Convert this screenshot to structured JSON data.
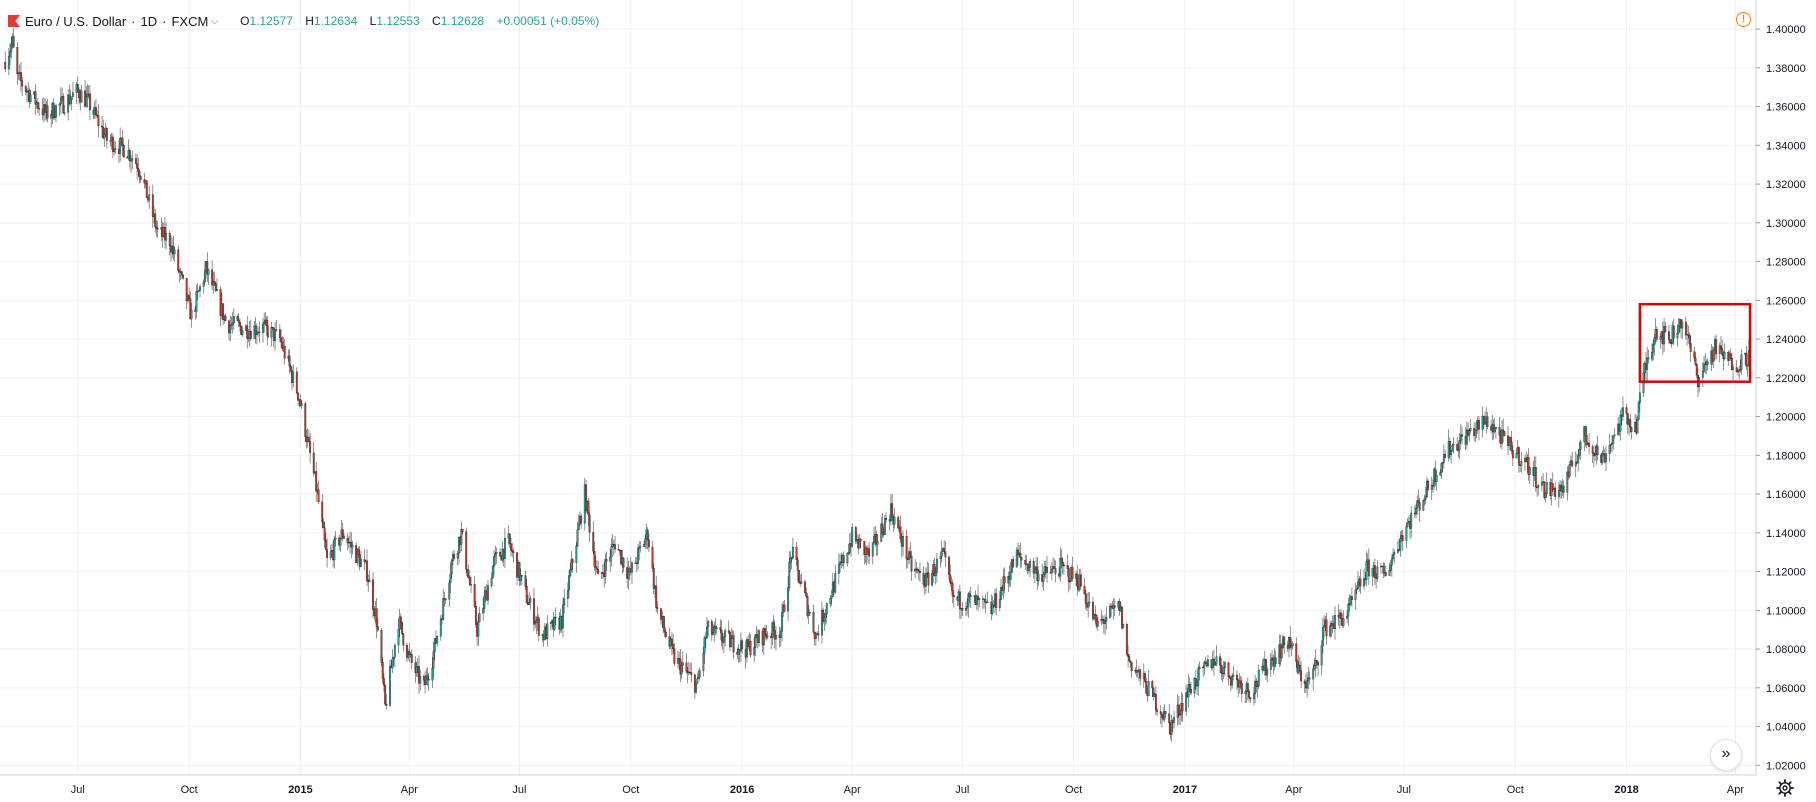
{
  "header": {
    "symbol": "Euro / U.S. Dollar",
    "sep1": "·",
    "interval": "1D",
    "sep2": "·",
    "exchange": "FXCM",
    "ohlc": {
      "o_label": "O",
      "o": "1.12577",
      "h_label": "H",
      "h": "1.12634",
      "l_label": "L",
      "l": "1.12553",
      "c_label": "C",
      "c": "1.12628",
      "change": "+0.00051 (+0.05%)"
    }
  },
  "icons": {
    "flag": "red-flag-icon",
    "dropdown": "chevron-down-icon",
    "warning": "exclamation-circle-icon",
    "scroll": "double-chevron-right-icon",
    "settings": "gear-icon"
  },
  "colors": {
    "up": "#26a69a",
    "down": "#c0392b",
    "grid": "#eef0f3",
    "highlight": "#e00000"
  },
  "chart_data": {
    "type": "candlestick",
    "title": "",
    "y_ticks": [
      "1.02000",
      "1.04000",
      "1.06000",
      "1.08000",
      "1.10000",
      "1.12000",
      "1.14000",
      "1.16000",
      "1.18000",
      "1.20000",
      "1.22000",
      "1.24000",
      "1.26000",
      "1.28000",
      "1.30000",
      "1.32000",
      "1.34000",
      "1.36000",
      "1.38000",
      "1.40000"
    ],
    "ylim": [
      1.015,
      1.415
    ],
    "x_range": [
      "2014-05-01",
      "2018-04-13"
    ],
    "x_ticks": [
      {
        "label": "Jul",
        "date": "2014-07-01"
      },
      {
        "label": "Oct",
        "date": "2014-10-01"
      },
      {
        "label": "2015",
        "date": "2015-01-01"
      },
      {
        "label": "Apr",
        "date": "2015-04-01"
      },
      {
        "label": "Jul",
        "date": "2015-07-01"
      },
      {
        "label": "Oct",
        "date": "2015-10-01"
      },
      {
        "label": "2016",
        "date": "2016-01-01"
      },
      {
        "label": "Apr",
        "date": "2016-04-01"
      },
      {
        "label": "Jul",
        "date": "2016-07-01"
      },
      {
        "label": "Oct",
        "date": "2016-10-01"
      },
      {
        "label": "2017",
        "date": "2017-01-01"
      },
      {
        "label": "Apr",
        "date": "2017-04-01"
      },
      {
        "label": "Jul",
        "date": "2017-07-01"
      },
      {
        "label": "Oct",
        "date": "2017-10-01"
      },
      {
        "label": "2018",
        "date": "2018-01-01"
      },
      {
        "label": "Apr",
        "date": "2018-04-01"
      }
    ],
    "close_path": [
      [
        "2014-05-01",
        1.383
      ],
      [
        "2014-05-08",
        1.393
      ],
      [
        "2014-05-12",
        1.375
      ],
      [
        "2014-05-28",
        1.362
      ],
      [
        "2014-06-05",
        1.356
      ],
      [
        "2014-06-20",
        1.362
      ],
      [
        "2014-07-01",
        1.368
      ],
      [
        "2014-07-10",
        1.362
      ],
      [
        "2014-07-25",
        1.343
      ],
      [
        "2014-08-10",
        1.338
      ],
      [
        "2014-08-20",
        1.33
      ],
      [
        "2014-09-05",
        1.295
      ],
      [
        "2014-09-15",
        1.291
      ],
      [
        "2014-10-03",
        1.252
      ],
      [
        "2014-10-15",
        1.276
      ],
      [
        "2014-11-01",
        1.248
      ],
      [
        "2014-11-20",
        1.245
      ],
      [
        "2014-12-01",
        1.246
      ],
      [
        "2014-12-15",
        1.24
      ],
      [
        "2014-12-31",
        1.21
      ],
      [
        "2015-01-06",
        1.19
      ],
      [
        "2015-01-15",
        1.16
      ],
      [
        "2015-01-23",
        1.125
      ],
      [
        "2015-02-05",
        1.14
      ],
      [
        "2015-02-25",
        1.12
      ],
      [
        "2015-03-05",
        1.095
      ],
      [
        "2015-03-12",
        1.05
      ],
      [
        "2015-03-23",
        1.095
      ],
      [
        "2015-04-01",
        1.075
      ],
      [
        "2015-04-13",
        1.06
      ],
      [
        "2015-04-20",
        1.075
      ],
      [
        "2015-05-06",
        1.125
      ],
      [
        "2015-05-14",
        1.14
      ],
      [
        "2015-05-27",
        1.09
      ],
      [
        "2015-06-10",
        1.125
      ],
      [
        "2015-06-22",
        1.135
      ],
      [
        "2015-07-08",
        1.105
      ],
      [
        "2015-07-20",
        1.087
      ],
      [
        "2015-08-05",
        1.095
      ],
      [
        "2015-08-24",
        1.16
      ],
      [
        "2015-09-04",
        1.115
      ],
      [
        "2015-09-18",
        1.135
      ],
      [
        "2015-09-30",
        1.118
      ],
      [
        "2015-10-15",
        1.14
      ],
      [
        "2015-10-23",
        1.1
      ],
      [
        "2015-11-06",
        1.075
      ],
      [
        "2015-11-25",
        1.061
      ],
      [
        "2015-12-03",
        1.09
      ],
      [
        "2015-12-18",
        1.085
      ],
      [
        "2016-01-05",
        1.08
      ],
      [
        "2016-01-20",
        1.088
      ],
      [
        "2016-02-02",
        1.09
      ],
      [
        "2016-02-11",
        1.13
      ],
      [
        "2016-03-02",
        1.087
      ],
      [
        "2016-03-15",
        1.11
      ],
      [
        "2016-04-01",
        1.138
      ],
      [
        "2016-04-15",
        1.128
      ],
      [
        "2016-05-03",
        1.152
      ],
      [
        "2016-05-20",
        1.122
      ],
      [
        "2016-06-01",
        1.115
      ],
      [
        "2016-06-15",
        1.128
      ],
      [
        "2016-06-24",
        1.105
      ],
      [
        "2016-07-08",
        1.105
      ],
      [
        "2016-07-25",
        1.1
      ],
      [
        "2016-08-15",
        1.128
      ],
      [
        "2016-09-05",
        1.118
      ],
      [
        "2016-09-20",
        1.122
      ],
      [
        "2016-10-06",
        1.115
      ],
      [
        "2016-10-20",
        1.092
      ],
      [
        "2016-11-08",
        1.102
      ],
      [
        "2016-11-15",
        1.075
      ],
      [
        "2016-12-01",
        1.06
      ],
      [
        "2016-12-20",
        1.04
      ],
      [
        "2017-01-05",
        1.06
      ],
      [
        "2017-01-25",
        1.075
      ],
      [
        "2017-02-10",
        1.065
      ],
      [
        "2017-02-25",
        1.058
      ],
      [
        "2017-03-10",
        1.072
      ],
      [
        "2017-03-28",
        1.085
      ],
      [
        "2017-04-05",
        1.068
      ],
      [
        "2017-04-12",
        1.062
      ],
      [
        "2017-04-20",
        1.072
      ],
      [
        "2017-04-25",
        1.09
      ],
      [
        "2017-05-15",
        1.098
      ],
      [
        "2017-06-01",
        1.122
      ],
      [
        "2017-06-15",
        1.118
      ],
      [
        "2017-06-30",
        1.14
      ],
      [
        "2017-07-20",
        1.162
      ],
      [
        "2017-08-05",
        1.182
      ],
      [
        "2017-08-25",
        1.192
      ],
      [
        "2017-09-08",
        1.198
      ],
      [
        "2017-09-25",
        1.185
      ],
      [
        "2017-10-10",
        1.176
      ],
      [
        "2017-10-25",
        1.162
      ],
      [
        "2017-11-10",
        1.163
      ],
      [
        "2017-11-27",
        1.19
      ],
      [
        "2017-12-12",
        1.178
      ],
      [
        "2017-12-29",
        1.2
      ],
      [
        "2018-01-09",
        1.195
      ],
      [
        "2018-01-15",
        1.222
      ],
      [
        "2018-01-25",
        1.245
      ],
      [
        "2018-02-05",
        1.24
      ],
      [
        "2018-02-16",
        1.25
      ],
      [
        "2018-03-01",
        1.22
      ],
      [
        "2018-03-15",
        1.235
      ],
      [
        "2018-03-28",
        1.228
      ],
      [
        "2018-04-05",
        1.228
      ],
      [
        "2018-04-13",
        1.232
      ]
    ],
    "highlight_box": {
      "date_from": "2018-01-12",
      "date_to": "2018-04-13",
      "price_high": 1.258,
      "price_low": 1.218
    },
    "grid": true
  }
}
